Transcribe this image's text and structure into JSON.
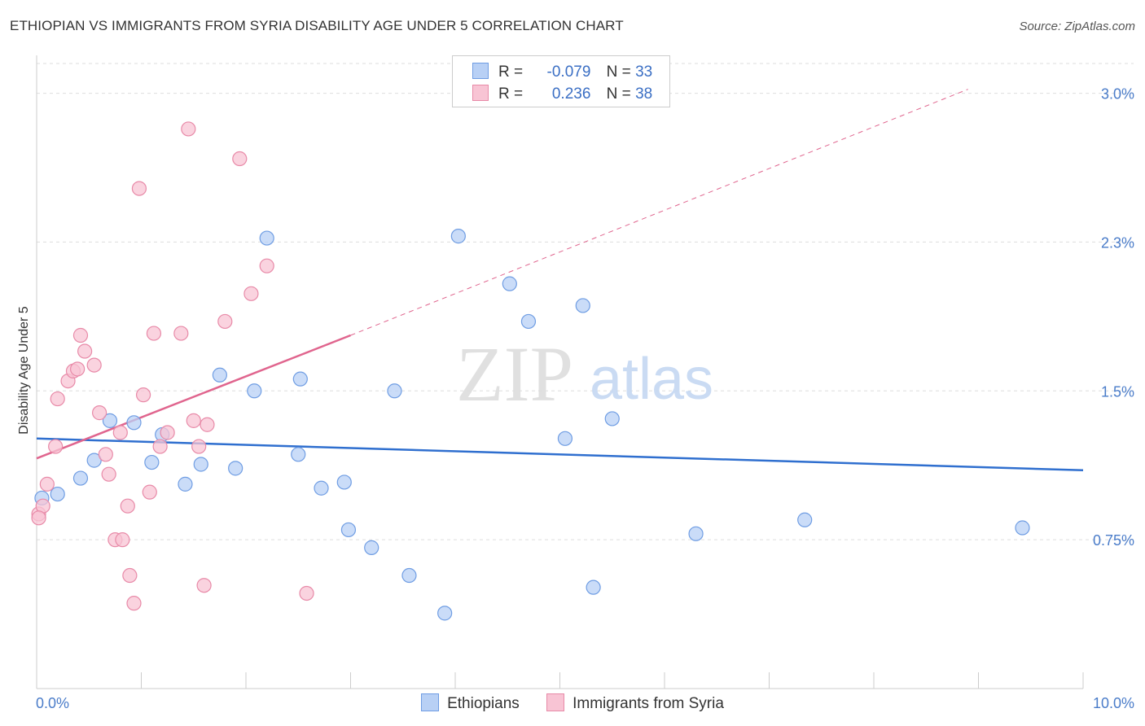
{
  "title": "ETHIOPIAN VS IMMIGRANTS FROM SYRIA DISABILITY AGE UNDER 5 CORRELATION CHART",
  "source": "Source: ZipAtlas.com",
  "watermark": {
    "zip": "ZIP",
    "atlas": "atlas"
  },
  "legend": {
    "r_label": "R =",
    "n_label": "N =",
    "rows": [
      {
        "r": "-0.079",
        "n": "33"
      },
      {
        "r": "0.236",
        "n": "38"
      }
    ]
  },
  "bottom_legend": [
    "Ethiopians",
    "Immigrants from Syria"
  ],
  "colors": {
    "blue_fill": "#b8d0f5",
    "blue_stroke": "#6f9de3",
    "blue_line": "#2f6fcf",
    "pink_fill": "#f8c4d4",
    "pink_stroke": "#e88aa8",
    "pink_line": "#e0658e",
    "grid": "#dddddd",
    "tick_text": "#4a7cc9"
  },
  "chart_data": {
    "type": "scatter",
    "title": "ETHIOPIAN VS IMMIGRANTS FROM SYRIA DISABILITY AGE UNDER 5 CORRELATION CHART",
    "xlabel": "",
    "ylabel": "Disability Age Under 5",
    "xlim": [
      0,
      10
    ],
    "ylim": [
      0,
      3.15
    ],
    "x_tick_labels": [
      "0.0%",
      "10.0%"
    ],
    "y_ticks": [
      0.75,
      1.5,
      2.25,
      3.0
    ],
    "y_tick_labels": [
      "0.75%",
      "1.5%",
      "2.3%",
      "3.0%"
    ],
    "grid": true,
    "legend_position": "top-center",
    "series": [
      {
        "name": "Ethiopians",
        "color": "#6f9de3",
        "points": [
          [
            0.05,
            0.96
          ],
          [
            0.2,
            0.98
          ],
          [
            0.42,
            1.06
          ],
          [
            0.55,
            1.15
          ],
          [
            0.7,
            1.35
          ],
          [
            0.93,
            1.34
          ],
          [
            1.1,
            1.14
          ],
          [
            1.2,
            1.28
          ],
          [
            1.42,
            1.03
          ],
          [
            1.57,
            1.13
          ],
          [
            1.75,
            1.58
          ],
          [
            1.9,
            1.11
          ],
          [
            2.08,
            1.5
          ],
          [
            2.2,
            2.27
          ],
          [
            2.5,
            1.18
          ],
          [
            2.52,
            1.56
          ],
          [
            2.72,
            1.01
          ],
          [
            2.94,
            1.04
          ],
          [
            2.98,
            0.8
          ],
          [
            3.2,
            0.71
          ],
          [
            3.42,
            1.5
          ],
          [
            3.56,
            0.57
          ],
          [
            3.9,
            0.38
          ],
          [
            4.03,
            2.28
          ],
          [
            4.52,
            2.04
          ],
          [
            4.7,
            1.85
          ],
          [
            5.05,
            1.26
          ],
          [
            5.22,
            1.93
          ],
          [
            5.32,
            0.51
          ],
          [
            5.5,
            1.36
          ],
          [
            6.3,
            0.78
          ],
          [
            7.34,
            0.85
          ],
          [
            9.42,
            0.81
          ]
        ]
      },
      {
        "name": "Immigrants from Syria",
        "color": "#e88aa8",
        "points": [
          [
            0.02,
            0.88
          ],
          [
            0.06,
            0.92
          ],
          [
            0.1,
            1.03
          ],
          [
            0.18,
            1.22
          ],
          [
            0.2,
            1.46
          ],
          [
            0.3,
            1.55
          ],
          [
            0.35,
            1.6
          ],
          [
            0.39,
            1.61
          ],
          [
            0.42,
            1.78
          ],
          [
            0.46,
            1.7
          ],
          [
            0.55,
            1.63
          ],
          [
            0.6,
            1.39
          ],
          [
            0.66,
            1.18
          ],
          [
            0.69,
            1.08
          ],
          [
            0.75,
            0.75
          ],
          [
            0.8,
            1.29
          ],
          [
            0.82,
            0.75
          ],
          [
            0.87,
            0.92
          ],
          [
            0.89,
            0.57
          ],
          [
            0.93,
            0.43
          ],
          [
            0.98,
            2.52
          ],
          [
            1.02,
            1.48
          ],
          [
            1.08,
            0.99
          ],
          [
            1.12,
            1.79
          ],
          [
            1.18,
            1.22
          ],
          [
            1.25,
            1.29
          ],
          [
            1.38,
            1.79
          ],
          [
            1.45,
            2.82
          ],
          [
            1.5,
            1.35
          ],
          [
            1.55,
            1.22
          ],
          [
            1.6,
            0.52
          ],
          [
            1.63,
            1.33
          ],
          [
            1.8,
            1.85
          ],
          [
            1.94,
            2.67
          ],
          [
            2.05,
            1.99
          ],
          [
            2.2,
            2.13
          ],
          [
            2.58,
            0.48
          ],
          [
            0.02,
            0.86
          ]
        ]
      }
    ],
    "trendlines": [
      {
        "series": "Ethiopians",
        "x": [
          0,
          10
        ],
        "y": [
          1.26,
          1.1
        ],
        "style": "solid"
      },
      {
        "series": "Immigrants from Syria",
        "x": [
          0,
          3.0
        ],
        "y": [
          1.16,
          1.78
        ],
        "style": "solid"
      },
      {
        "series": "Immigrants from Syria",
        "x": [
          3.0,
          8.9
        ],
        "y": [
          1.78,
          3.02
        ],
        "style": "dashed"
      }
    ]
  }
}
